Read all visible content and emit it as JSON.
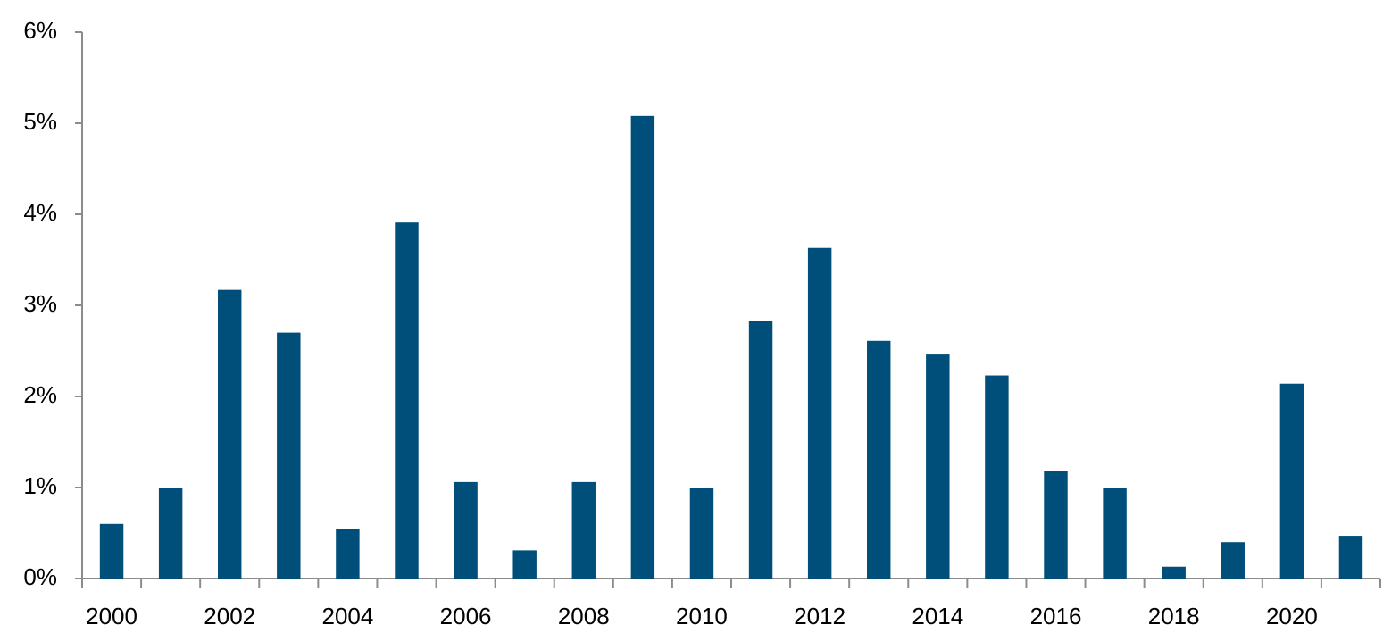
{
  "chart_data": {
    "type": "bar",
    "categories": [
      "2000",
      null,
      "2002",
      null,
      "2004",
      null,
      "2006",
      null,
      "2008",
      null,
      "2010",
      null,
      "2012",
      null,
      "2014",
      null,
      "2016",
      null,
      "2018",
      null,
      "2020",
      null
    ],
    "values": [
      0.6,
      1.0,
      3.17,
      2.7,
      0.54,
      3.91,
      1.06,
      0.31,
      1.06,
      5.08,
      1.0,
      2.83,
      3.63,
      2.61,
      2.46,
      2.23,
      1.18,
      1.0,
      0.13,
      0.4,
      2.14,
      0.47
    ],
    "color": "#004f7a",
    "ylim": [
      0,
      6
    ],
    "yticks": [
      {
        "value": 0,
        "label": "0%"
      },
      {
        "value": 1,
        "label": "1%"
      },
      {
        "value": 2,
        "label": "2%"
      },
      {
        "value": 3,
        "label": "3%"
      },
      {
        "value": 4,
        "label": "4%"
      },
      {
        "value": 5,
        "label": "5%"
      },
      {
        "value": 6,
        "label": "6%"
      }
    ],
    "grid": false
  }
}
